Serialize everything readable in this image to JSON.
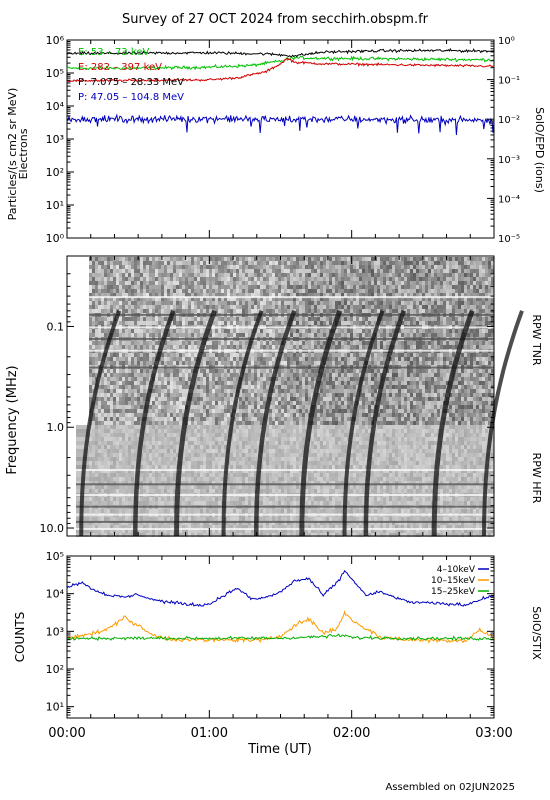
{
  "title": "Survey of 27 OCT 2024 from secchirh.obspm.fr",
  "footer": "Assembled on 02JUN2025",
  "xaxis": {
    "label": "Time (UT)",
    "ticks": [
      "00:00",
      "01:00",
      "02:00",
      "03:00"
    ],
    "range_hours": [
      0,
      3
    ]
  },
  "panels": {
    "epd": {
      "right_label": "SolO/EPD (ions)",
      "left_label_1": "Particles/(s cm2 sr MeV)",
      "left_label_2": "Electrons",
      "left_ticks": [
        "10⁰",
        "10¹",
        "10²",
        "10³",
        "10⁴",
        "10⁵",
        "10⁶"
      ],
      "right_ticks": [
        "10⁻⁵",
        "10⁻⁴",
        "10⁻³",
        "10⁻²",
        "10⁻¹",
        "10⁰"
      ],
      "legend": [
        {
          "label": "E: 53 – 73 keV",
          "color": "#00c000"
        },
        {
          "label": "E: 282 – 397 keV",
          "color": "#d00000"
        },
        {
          "label": "P: 7.075 – 28.33 MeV",
          "color": "#000000"
        },
        {
          "label": "P: 47.05 – 104.8 MeV",
          "color": "#0000c0"
        }
      ]
    },
    "rpw": {
      "ylabel": "Frequency (MHz)",
      "ticks": [
        "0.1",
        "1.0",
        "10.0"
      ],
      "tnr_label": "RPW TNR",
      "hfr_label": "RPW HFR"
    },
    "stix": {
      "ylabel": "COUNTS",
      "right_label": "SolO/STIX",
      "ticks": [
        "10¹",
        "10²",
        "10³",
        "10⁴",
        "10⁵"
      ],
      "legend": [
        {
          "label": "4–10keV",
          "color": "#0000c0"
        },
        {
          "label": "10–15keV",
          "color": "#ff9900"
        },
        {
          "label": "15–25keV",
          "color": "#00b000"
        }
      ]
    }
  },
  "chart_data": [
    {
      "type": "line",
      "panel": "SolO/EPD",
      "x_unit": "hours UT",
      "yscale": "log",
      "ylim": [
        0.5,
        1000000
      ],
      "series": [
        {
          "name": "E: 53 – 73 keV",
          "color": "#00c000",
          "x": [
            0,
            0.5,
            1.0,
            1.3,
            1.5,
            1.6,
            1.8,
            2.2,
            2.6,
            3.0
          ],
          "y": [
            140000,
            140000,
            150000,
            170000,
            230000,
            290000,
            280000,
            270000,
            260000,
            250000
          ]
        },
        {
          "name": "E: 282 – 397 keV",
          "color": "#d00000",
          "x": [
            0,
            0.5,
            1.0,
            1.2,
            1.4,
            1.5,
            1.55,
            1.6,
            1.8,
            2.2,
            2.6,
            3.0
          ],
          "y": [
            58000,
            60000,
            62000,
            72000,
            110000,
            190000,
            280000,
            210000,
            190000,
            180000,
            170000,
            160000
          ]
        },
        {
          "name": "P: 7.075 – 28.33 MeV",
          "color": "#000000",
          "x": [
            0,
            0.5,
            1.0,
            1.4,
            1.6,
            1.8,
            2.2,
            2.6,
            3.0
          ],
          "y": [
            390000,
            400000,
            410000,
            380000,
            330000,
            430000,
            470000,
            480000,
            460000
          ]
        },
        {
          "name": "P: 47.05 – 104.8 MeV",
          "color": "#0000c0",
          "x": [
            0,
            0.5,
            1.0,
            1.5,
            2.0,
            2.5,
            3.0
          ],
          "y": [
            4000,
            4000,
            4100,
            3900,
            4000,
            3800,
            3700
          ]
        }
      ]
    },
    {
      "type": "heatmap",
      "panel": "RPW TNR / HFR",
      "y_unit": "MHz",
      "yscale": "log",
      "ylim": [
        0.02,
        12
      ],
      "type_iii_bursts_hours": [
        0.1,
        0.48,
        0.77,
        1.1,
        1.33,
        1.65,
        1.95,
        2.1,
        2.58,
        2.93
      ]
    },
    {
      "type": "line",
      "panel": "SolO/STIX",
      "x_unit": "hours UT",
      "yscale": "log",
      "ylim": [
        5,
        100000
      ],
      "series": [
        {
          "name": "4–10keV",
          "color": "#0000c0",
          "x": [
            0,
            0.1,
            0.2,
            0.3,
            0.4,
            0.5,
            0.6,
            0.7,
            0.8,
            0.9,
            1.0,
            1.1,
            1.2,
            1.3,
            1.4,
            1.5,
            1.6,
            1.7,
            1.8,
            1.9,
            1.95,
            2.0,
            2.1,
            2.2,
            2.4,
            2.6,
            2.8,
            2.9,
            3.0
          ],
          "y": [
            15000,
            20000,
            12000,
            9000,
            8000,
            9500,
            7000,
            6000,
            5500,
            5000,
            5200,
            9000,
            14000,
            7000,
            8000,
            11000,
            22000,
            25000,
            9000,
            20000,
            40000,
            25000,
            9000,
            11000,
            6000,
            5500,
            5000,
            7000,
            9000
          ]
        },
        {
          "name": "10–15keV",
          "color": "#ff9900",
          "x": [
            0,
            0.2,
            0.3,
            0.4,
            0.5,
            0.6,
            0.7,
            0.8,
            1.0,
            1.2,
            1.4,
            1.5,
            1.6,
            1.7,
            1.8,
            1.9,
            1.95,
            2.0,
            2.2,
            2.4,
            2.6,
            2.8,
            2.9,
            3.0
          ],
          "y": [
            700,
            900,
            1200,
            2400,
            1400,
            800,
            650,
            600,
            580,
            600,
            580,
            750,
            1500,
            2100,
            900,
            1200,
            3200,
            2000,
            700,
            600,
            580,
            570,
            1100,
            650
          ]
        },
        {
          "name": "15–25keV",
          "color": "#00b000",
          "x": [
            0,
            0.5,
            1.0,
            1.5,
            1.7,
            1.95,
            2.0,
            2.5,
            3.0
          ],
          "y": [
            640,
            660,
            650,
            660,
            700,
            780,
            680,
            650,
            640
          ]
        }
      ]
    }
  ]
}
